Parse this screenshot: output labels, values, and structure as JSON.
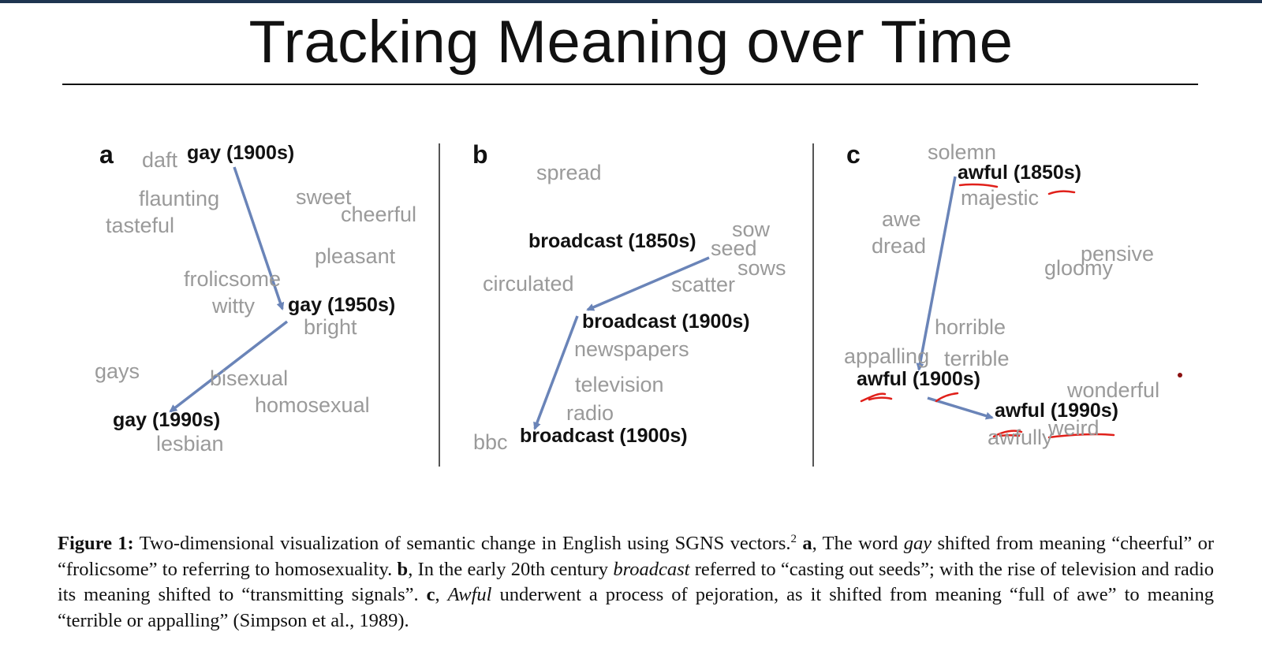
{
  "slide": {
    "title": "Tracking Meaning over Time"
  },
  "colors": {
    "arrow": "#6a84b8",
    "faded_word": "#9a9a9a",
    "annotation": "#e0201a",
    "title_bar": "#1f3550"
  },
  "panels": {
    "a": {
      "letter": "a",
      "faded": [
        "daft",
        "flaunting",
        "tasteful",
        "sweet",
        "cheerful",
        "pleasant",
        "frolicsome",
        "witty",
        "bright",
        "gays",
        "bisexual",
        "homosexual",
        "lesbian"
      ],
      "key": [
        "gay (1900s)",
        "gay (1950s)",
        "gay (1990s)"
      ]
    },
    "b": {
      "letter": "b",
      "faded": [
        "spread",
        "sow",
        "seed",
        "sows",
        "circulated",
        "scatter",
        "newspapers",
        "television",
        "radio",
        "bbc"
      ],
      "key": [
        "broadcast (1850s)",
        "broadcast (1900s)",
        "broadcast (1900s)"
      ]
    },
    "c": {
      "letter": "c",
      "faded": [
        "solemn",
        "majestic",
        "awe",
        "dread",
        "pensive",
        "gloomy",
        "horrible",
        "appalling",
        "terrible",
        "wonderful",
        "weird",
        "awfully"
      ],
      "key": [
        "awful (1850s)",
        "awful (1900s)",
        "awful (1990s)"
      ]
    }
  },
  "caption": {
    "figure_label": "Figure 1:",
    "part1": " Two-dimensional visualization of semantic change in English using SGNS vectors.",
    "sup": "2",
    "a_label": " a",
    "part2": ", The word ",
    "gay": "gay",
    "part3": " shifted from meaning “cheerful” or “frolicsome” to referring to homosexuality. ",
    "b_label": "b",
    "part4": ", In the early 20th century ",
    "broadcast": "broadcast",
    "part5": " referred to “casting out seeds”; with the rise of television and radio its meaning shifted to “transmitting signals”. ",
    "c_label": "c",
    "part6": ", ",
    "awful": "Awful",
    "part7": " underwent a process of pejoration, as it shifted from meaning “full of awe” to meaning “terrible or appalling” (Simpson et al., 1989)."
  }
}
